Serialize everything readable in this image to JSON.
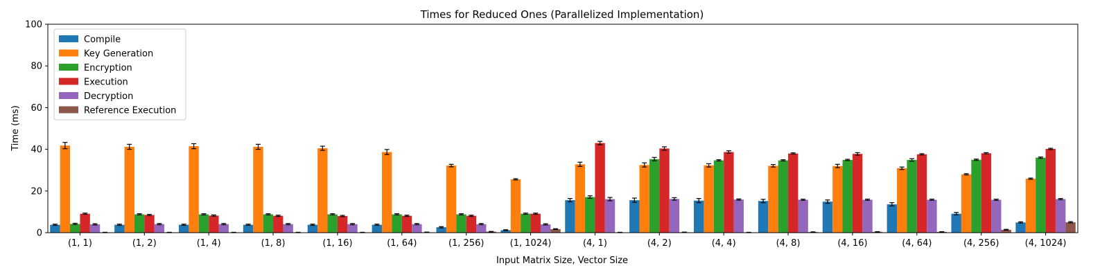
{
  "chart_data": {
    "type": "bar",
    "title": "Times for Reduced Ones (Parallelized Implementation)",
    "xlabel": "Input Matrix Size, Vector Size",
    "ylabel": "Time (ms)",
    "ylim": [
      0,
      100
    ],
    "yticks": [
      0,
      20,
      40,
      60,
      80,
      100
    ],
    "grid": false,
    "legend_position": "top-left",
    "categories": [
      "(1, 1)",
      "(1, 2)",
      "(1, 4)",
      "(1, 8)",
      "(1, 16)",
      "(1, 64)",
      "(1, 256)",
      "(1, 1024)",
      "(4, 1)",
      "(4, 2)",
      "(4, 4)",
      "(4, 8)",
      "(4, 16)",
      "(4, 64)",
      "(4, 256)",
      "(4, 1024)"
    ],
    "series": [
      {
        "name": "Compile",
        "color": "#1f77b4",
        "values": [
          3.8,
          3.8,
          3.8,
          3.8,
          3.8,
          3.8,
          2.6,
          1.2,
          15.6,
          15.6,
          15.4,
          15.2,
          14.9,
          13.6,
          9.1,
          4.9
        ],
        "errors": [
          0.3,
          0.3,
          0.3,
          0.3,
          0.3,
          0.3,
          0.3,
          0.2,
          0.8,
          1.0,
          1.0,
          0.8,
          0.8,
          0.8,
          0.6,
          0.3
        ]
      },
      {
        "name": "Key Generation",
        "color": "#ff7f0e",
        "values": [
          41.8,
          41.2,
          41.5,
          41.2,
          40.5,
          38.7,
          32.2,
          25.6,
          32.8,
          32.5,
          32.3,
          32.1,
          32.0,
          30.9,
          28.0,
          25.9
        ],
        "errors": [
          1.5,
          1.2,
          1.2,
          1.2,
          1.0,
          1.2,
          0.6,
          0.3,
          1.0,
          1.0,
          0.8,
          0.6,
          0.8,
          0.6,
          0.3,
          0.3
        ]
      },
      {
        "name": "Encryption",
        "color": "#2ca02c",
        "values": [
          4.2,
          8.8,
          8.8,
          8.8,
          8.8,
          8.8,
          8.8,
          9.1,
          17.1,
          35.3,
          34.7,
          34.7,
          34.9,
          34.9,
          35.0,
          36.0
        ],
        "errors": [
          0.3,
          0.3,
          0.3,
          0.3,
          0.3,
          0.3,
          0.3,
          0.3,
          0.6,
          0.8,
          0.3,
          0.3,
          0.3,
          0.6,
          0.3,
          0.3
        ]
      },
      {
        "name": "Execution",
        "color": "#d62728",
        "values": [
          9.1,
          8.5,
          8.2,
          8.1,
          8.0,
          8.1,
          8.1,
          9.1,
          43.0,
          40.4,
          38.7,
          38.0,
          37.8,
          37.6,
          38.1,
          40.2
        ],
        "errors": [
          0.3,
          0.3,
          0.3,
          0.3,
          0.3,
          0.3,
          0.3,
          0.3,
          0.8,
          0.8,
          0.6,
          0.3,
          0.6,
          0.3,
          0.3,
          0.3
        ]
      },
      {
        "name": "Decryption",
        "color": "#9467bd",
        "values": [
          4.0,
          4.1,
          4.1,
          4.1,
          4.1,
          4.1,
          4.1,
          4.0,
          16.1,
          16.2,
          15.9,
          15.8,
          15.8,
          15.8,
          15.8,
          16.1
        ],
        "errors": [
          0.3,
          0.3,
          0.3,
          0.3,
          0.3,
          0.3,
          0.3,
          0.3,
          0.8,
          0.6,
          0.3,
          0.3,
          0.3,
          0.3,
          0.3,
          0.3
        ]
      },
      {
        "name": "Reference Execution",
        "color": "#8c564b",
        "values": [
          0.1,
          0.1,
          0.1,
          0.1,
          0.1,
          0.2,
          0.5,
          1.7,
          0.1,
          0.2,
          0.1,
          0.3,
          0.4,
          0.4,
          1.4,
          5.0
        ],
        "errors": [
          0.1,
          0.1,
          0.1,
          0.1,
          0.1,
          0.1,
          0.1,
          0.2,
          0.1,
          0.1,
          0.1,
          0.1,
          0.1,
          0.1,
          0.2,
          0.3
        ]
      }
    ]
  }
}
